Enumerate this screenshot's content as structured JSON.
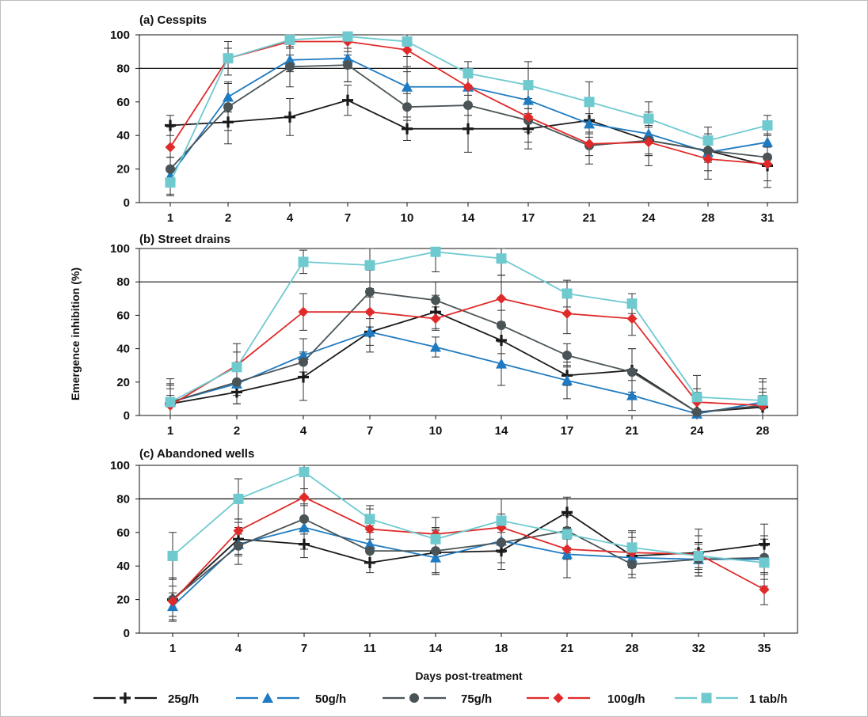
{
  "chart_data": [
    {
      "type": "line",
      "title": "(a) Cesspits",
      "categories": [
        "1",
        "2",
        "4",
        "7",
        "10",
        "14",
        "17",
        "21",
        "24",
        "28",
        "31"
      ],
      "ylim": [
        0,
        100
      ],
      "yticks": [
        0,
        20,
        40,
        60,
        80,
        100
      ],
      "reference_line": 80,
      "series": [
        {
          "name": "25g/h",
          "values": [
            46,
            48,
            51,
            61,
            44,
            44,
            44,
            49,
            37,
            31,
            22
          ]
        },
        {
          "name": "50g/h",
          "values": [
            16,
            63,
            85,
            86,
            69,
            69,
            61,
            47,
            41,
            30,
            36
          ]
        },
        {
          "name": "75g/h",
          "values": [
            20,
            57,
            81,
            82,
            57,
            58,
            49,
            34,
            37,
            31,
            27
          ]
        },
        {
          "name": "100g/h",
          "values": [
            33,
            86,
            96,
            96,
            91,
            69,
            51,
            35,
            36,
            26,
            23
          ]
        },
        {
          "name": "1 tab/h",
          "values": [
            12,
            86,
            97,
            99,
            96,
            77,
            70,
            60,
            50,
            37,
            46
          ]
        }
      ]
    },
    {
      "type": "line",
      "title": "(b) Street drains",
      "categories": [
        "1",
        "2",
        "4",
        "7",
        "10",
        "14",
        "17",
        "21",
        "24",
        "28"
      ],
      "ylim": [
        0,
        100
      ],
      "yticks": [
        0,
        20,
        40,
        60,
        80,
        100
      ],
      "reference_line": 80,
      "series": [
        {
          "name": "25g/h",
          "values": [
            7,
            14,
            23,
            50,
            62,
            45,
            24,
            27,
            2,
            5
          ]
        },
        {
          "name": "50g/h",
          "values": [
            8,
            19,
            36,
            50,
            41,
            31,
            21,
            12,
            1,
            8
          ]
        },
        {
          "name": "75g/h",
          "values": [
            8,
            20,
            32,
            74,
            69,
            54,
            36,
            26,
            2,
            6
          ]
        },
        {
          "name": "100g/h",
          "values": [
            6,
            30,
            62,
            62,
            58,
            70,
            61,
            58,
            8,
            6
          ]
        },
        {
          "name": "1 tab/h",
          "values": [
            8,
            29,
            92,
            90,
            98,
            94,
            73,
            67,
            11,
            9
          ]
        }
      ]
    },
    {
      "type": "line",
      "title": "(c) Abandoned wells",
      "categories": [
        "1",
        "4",
        "7",
        "11",
        "14",
        "18",
        "21",
        "28",
        "32",
        "35"
      ],
      "ylim": [
        0,
        100
      ],
      "yticks": [
        0,
        20,
        40,
        60,
        80,
        100
      ],
      "reference_line": 80,
      "series": [
        {
          "name": "25g/h",
          "values": [
            20,
            56,
            53,
            42,
            48,
            49,
            72,
            46,
            48,
            53
          ]
        },
        {
          "name": "50g/h",
          "values": [
            16,
            53,
            63,
            53,
            45,
            55,
            47,
            45,
            44,
            44
          ]
        },
        {
          "name": "75g/h",
          "values": [
            20,
            52,
            68,
            49,
            49,
            54,
            61,
            41,
            44,
            45
          ]
        },
        {
          "name": "100g/h",
          "values": [
            19,
            61,
            81,
            62,
            59,
            63,
            50,
            48,
            47,
            26
          ]
        },
        {
          "name": "1 tab/h",
          "values": [
            46,
            80,
            96,
            68,
            56,
            67,
            59,
            51,
            46,
            42
          ]
        }
      ]
    }
  ],
  "axes": {
    "ylabel": "Emergence inhibition (%)",
    "xlabel": "Days post-treatment"
  },
  "legend": [
    {
      "label": "25g/h",
      "color": "#1a1a1a",
      "marker": "plus"
    },
    {
      "label": "50g/h",
      "color": "#1f7bc1",
      "marker": "triangle"
    },
    {
      "label": "75g/h",
      "color": "#4a5457",
      "marker": "circle"
    },
    {
      "label": "100g/h",
      "color": "#e02a2a",
      "marker": "diamond"
    },
    {
      "label": "1 tab/h",
      "color": "#6fcad0",
      "marker": "square"
    }
  ]
}
